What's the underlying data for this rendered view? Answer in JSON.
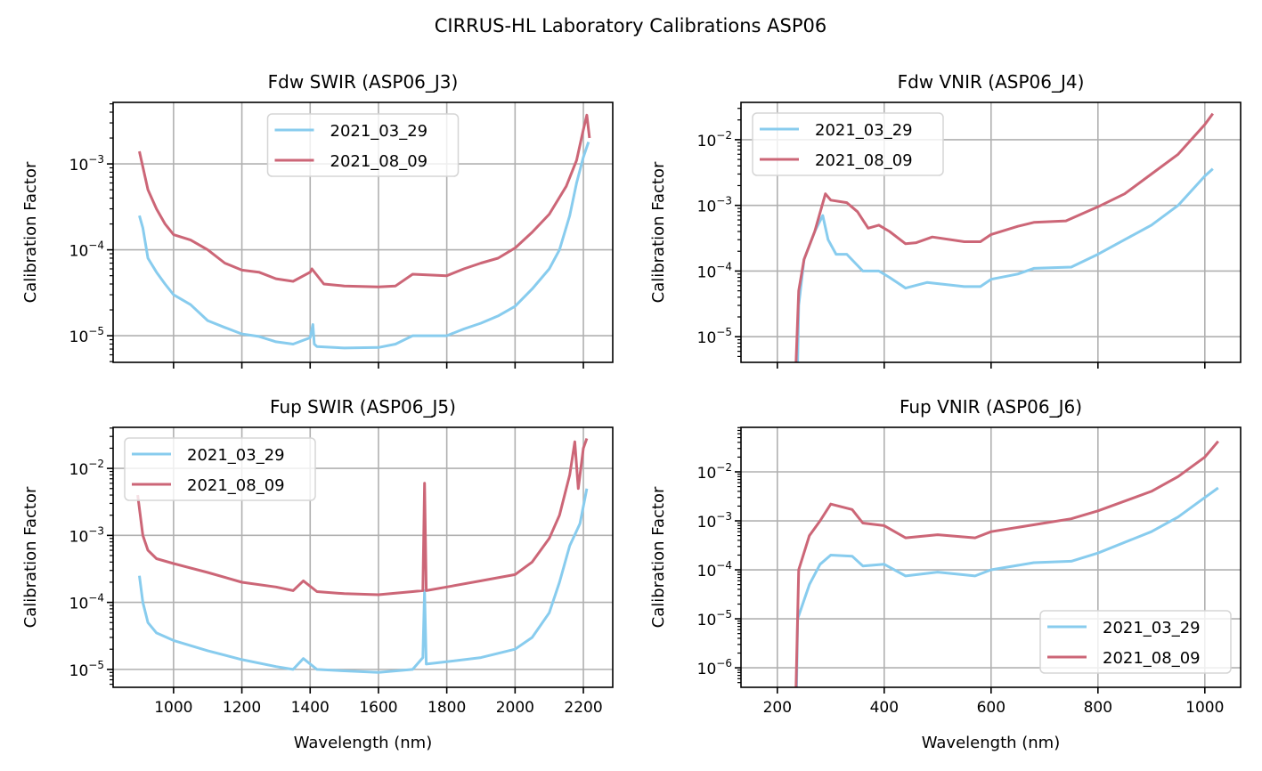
{
  "figure_title": "CIRRUS-HL Laboratory Calibrations ASP06",
  "colors": {
    "series_1": "#88CCEE",
    "series_2": "#CC6677",
    "grid": "#b0b0b0"
  },
  "chart_data": [
    {
      "type": "line",
      "title": "Fdw SWIR (ASP06_J3)",
      "xlabel": "",
      "ylabel": "Calibration Factor",
      "yscale": "log",
      "xlim": [
        823,
        2286
      ],
      "ylim": [
        4.9e-06,
        0.0052
      ],
      "xticks": [
        1000,
        1200,
        1400,
        1600,
        1800,
        2000,
        2200
      ],
      "xtick_labels_shown": false,
      "yticks": [
        1e-05,
        0.0001,
        0.001
      ],
      "ytick_labels": [
        [
          "10",
          "−5"
        ],
        [
          "10",
          "−4"
        ],
        [
          "10",
          "−3"
        ]
      ],
      "grid": true,
      "legend": "upper center",
      "series": [
        {
          "name": "2021_03_29",
          "x": [
            900,
            910,
            925,
            950,
            975,
            1000,
            1050,
            1100,
            1150,
            1200,
            1250,
            1300,
            1350,
            1400,
            1408,
            1412,
            1420,
            1500,
            1600,
            1650,
            1700,
            1800,
            1850,
            1900,
            1950,
            2000,
            2050,
            2100,
            2130,
            2160,
            2180,
            2200,
            2215
          ],
          "y": [
            0.00025,
            0.00018,
            8e-05,
            5.5e-05,
            4e-05,
            3e-05,
            2.3e-05,
            1.5e-05,
            1.25e-05,
            1.05e-05,
            9.8e-06,
            8.5e-06,
            8e-06,
            9.5e-06,
            1.35e-05,
            8e-06,
            7.5e-06,
            7.2e-06,
            7.3e-06,
            8e-06,
            1e-05,
            1e-05,
            1.2e-05,
            1.4e-05,
            1.7e-05,
            2.2e-05,
            3.5e-05,
            6e-05,
            0.0001,
            0.00025,
            0.0006,
            0.0012,
            0.0018
          ]
        },
        {
          "name": "2021_08_09",
          "x": [
            900,
            925,
            950,
            975,
            1000,
            1050,
            1100,
            1150,
            1200,
            1250,
            1300,
            1350,
            1400,
            1405,
            1440,
            1500,
            1600,
            1650,
            1700,
            1800,
            1850,
            1900,
            1950,
            2000,
            2050,
            2100,
            2150,
            2180,
            2200,
            2210,
            2218
          ],
          "y": [
            0.0014,
            0.0005,
            0.0003,
            0.0002,
            0.00015,
            0.00013,
            0.0001,
            7e-05,
            5.8e-05,
            5.5e-05,
            4.6e-05,
            4.3e-05,
            5.5e-05,
            6e-05,
            4e-05,
            3.8e-05,
            3.7e-05,
            3.8e-05,
            5.2e-05,
            5e-05,
            6e-05,
            7e-05,
            8e-05,
            0.000105,
            0.00016,
            0.00026,
            0.00055,
            0.0011,
            0.0025,
            0.0037,
            0.002
          ]
        }
      ]
    },
    {
      "type": "line",
      "title": "Fdw VNIR (ASP06_J4)",
      "xlabel": "",
      "ylabel": "Calibration Factor",
      "yscale": "log",
      "xlim": [
        132,
        1067
      ],
      "ylim": [
        4.07e-06,
        0.037
      ],
      "xticks": [
        200,
        400,
        600,
        800,
        1000
      ],
      "xtick_labels_shown": false,
      "yticks": [
        1e-05,
        0.0001,
        0.001,
        0.01
      ],
      "ytick_labels": [
        [
          "10",
          "−5"
        ],
        [
          "10",
          "−4"
        ],
        [
          "10",
          "−3"
        ],
        [
          "10",
          "−2"
        ]
      ],
      "grid": true,
      "legend": "upper left",
      "series": [
        {
          "name": "2021_03_29",
          "x": [
            238,
            240,
            250,
            270,
            285,
            295,
            310,
            330,
            360,
            390,
            410,
            440,
            480,
            550,
            580,
            600,
            650,
            680,
            750,
            800,
            850,
            900,
            950,
            1000,
            1015
          ],
          "y": [
            4e-06,
            3e-05,
            0.00015,
            0.0004,
            0.0007,
            0.0003,
            0.00018,
            0.00018,
            0.0001,
            0.0001,
            8e-05,
            5.5e-05,
            6.7e-05,
            5.8e-05,
            5.8e-05,
            7.5e-05,
            9e-05,
            0.00011,
            0.000115,
            0.00018,
            0.0003,
            0.0005,
            0.001,
            0.0028,
            0.0036
          ]
        },
        {
          "name": "2021_08_09",
          "x": [
            235,
            240,
            250,
            270,
            290,
            300,
            330,
            350,
            370,
            390,
            410,
            440,
            460,
            490,
            550,
            580,
            600,
            650,
            680,
            740,
            800,
            850,
            900,
            950,
            1000,
            1015
          ],
          "y": [
            4e-06,
            5e-05,
            0.00015,
            0.0004,
            0.0015,
            0.0012,
            0.0011,
            0.0008,
            0.00045,
            0.0005,
            0.0004,
            0.00026,
            0.00027,
            0.00033,
            0.00028,
            0.00028,
            0.00036,
            0.00048,
            0.00055,
            0.00058,
            0.00095,
            0.0015,
            0.003,
            0.006,
            0.017,
            0.025
          ]
        }
      ]
    },
    {
      "type": "line",
      "title": "Fup SWIR (ASP06_J5)",
      "xlabel": "Wavelength (nm)",
      "ylabel": "Calibration Factor",
      "yscale": "log",
      "xlim": [
        823,
        2286
      ],
      "ylim": [
        5.4e-06,
        0.041
      ],
      "xticks": [
        1000,
        1200,
        1400,
        1600,
        1800,
        2000,
        2200
      ],
      "xtick_labels_shown": true,
      "yticks": [
        1e-05,
        0.0001,
        0.001,
        0.01
      ],
      "ytick_labels": [
        [
          "10",
          "−5"
        ],
        [
          "10",
          "−4"
        ],
        [
          "10",
          "−3"
        ],
        [
          "10",
          "−2"
        ]
      ],
      "grid": true,
      "legend": "upper left",
      "series": [
        {
          "name": "2021_03_29",
          "x": [
            900,
            910,
            925,
            950,
            1000,
            1100,
            1200,
            1300,
            1350,
            1380,
            1420,
            1500,
            1600,
            1700,
            1730,
            1735,
            1740,
            1800,
            1900,
            2000,
            2050,
            2100,
            2130,
            2160,
            2190,
            2210
          ],
          "y": [
            0.00025,
            0.0001,
            5e-05,
            3.5e-05,
            2.7e-05,
            1.9e-05,
            1.4e-05,
            1.1e-05,
            1e-05,
            1.45e-05,
            1e-05,
            9.5e-06,
            9e-06,
            1e-05,
            1.5e-05,
            0.00015,
            1.2e-05,
            1.3e-05,
            1.5e-05,
            2e-05,
            3e-05,
            7e-05,
            0.0002,
            0.0007,
            0.0015,
            0.005
          ]
        },
        {
          "name": "2021_08_09",
          "x": [
            895,
            910,
            925,
            950,
            1000,
            1100,
            1200,
            1300,
            1350,
            1380,
            1420,
            1500,
            1600,
            1700,
            1730,
            1735,
            1740,
            1800,
            1900,
            2000,
            2050,
            2100,
            2130,
            2160,
            2175,
            2185,
            2200,
            2210
          ],
          "y": [
            0.004,
            0.001,
            0.0006,
            0.00045,
            0.00038,
            0.00028,
            0.0002,
            0.00017,
            0.00015,
            0.00021,
            0.000145,
            0.000135,
            0.00013,
            0.000145,
            0.00015,
            0.006,
            0.00015,
            0.00017,
            0.00021,
            0.00026,
            0.0004,
            0.0009,
            0.002,
            0.008,
            0.025,
            0.005,
            0.02,
            0.028
          ]
        }
      ]
    },
    {
      "type": "line",
      "title": "Fup VNIR (ASP06_J6)",
      "xlabel": "Wavelength (nm)",
      "ylabel": "Calibration Factor",
      "yscale": "log",
      "xlim": [
        132,
        1067
      ],
      "ylim": [
        4e-07,
        0.081
      ],
      "xticks": [
        200,
        400,
        600,
        800,
        1000
      ],
      "xtick_labels_shown": true,
      "yticks": [
        1e-06,
        1e-05,
        0.0001,
        0.001,
        0.01
      ],
      "ytick_labels": [
        [
          "10",
          "−6"
        ],
        [
          "10",
          "−5"
        ],
        [
          "10",
          "−4"
        ],
        [
          "10",
          "−3"
        ],
        [
          "10",
          "−2"
        ]
      ],
      "grid": true,
      "legend": "lower right",
      "series": [
        {
          "name": "2021_03_29",
          "x": [
            236,
            238,
            260,
            280,
            300,
            340,
            360,
            400,
            440,
            500,
            570,
            600,
            680,
            750,
            800,
            900,
            950,
            1000,
            1025
          ],
          "y": [
            4e-07,
            1e-05,
            5e-05,
            0.00013,
            0.0002,
            0.00019,
            0.00012,
            0.00013,
            7.5e-05,
            9e-05,
            7.5e-05,
            0.0001,
            0.00014,
            0.00015,
            0.00022,
            0.0006,
            0.0012,
            0.003,
            0.0047
          ]
        },
        {
          "name": "2021_08_09",
          "x": [
            235,
            240,
            260,
            280,
            300,
            340,
            360,
            400,
            440,
            500,
            570,
            600,
            700,
            750,
            800,
            900,
            950,
            1000,
            1025
          ],
          "y": [
            4e-07,
            0.0001,
            0.0005,
            0.001,
            0.0022,
            0.0017,
            0.0009,
            0.0008,
            0.00045,
            0.00052,
            0.00045,
            0.0006,
            0.0009,
            0.0011,
            0.0016,
            0.004,
            0.008,
            0.02,
            0.042
          ]
        }
      ]
    }
  ]
}
